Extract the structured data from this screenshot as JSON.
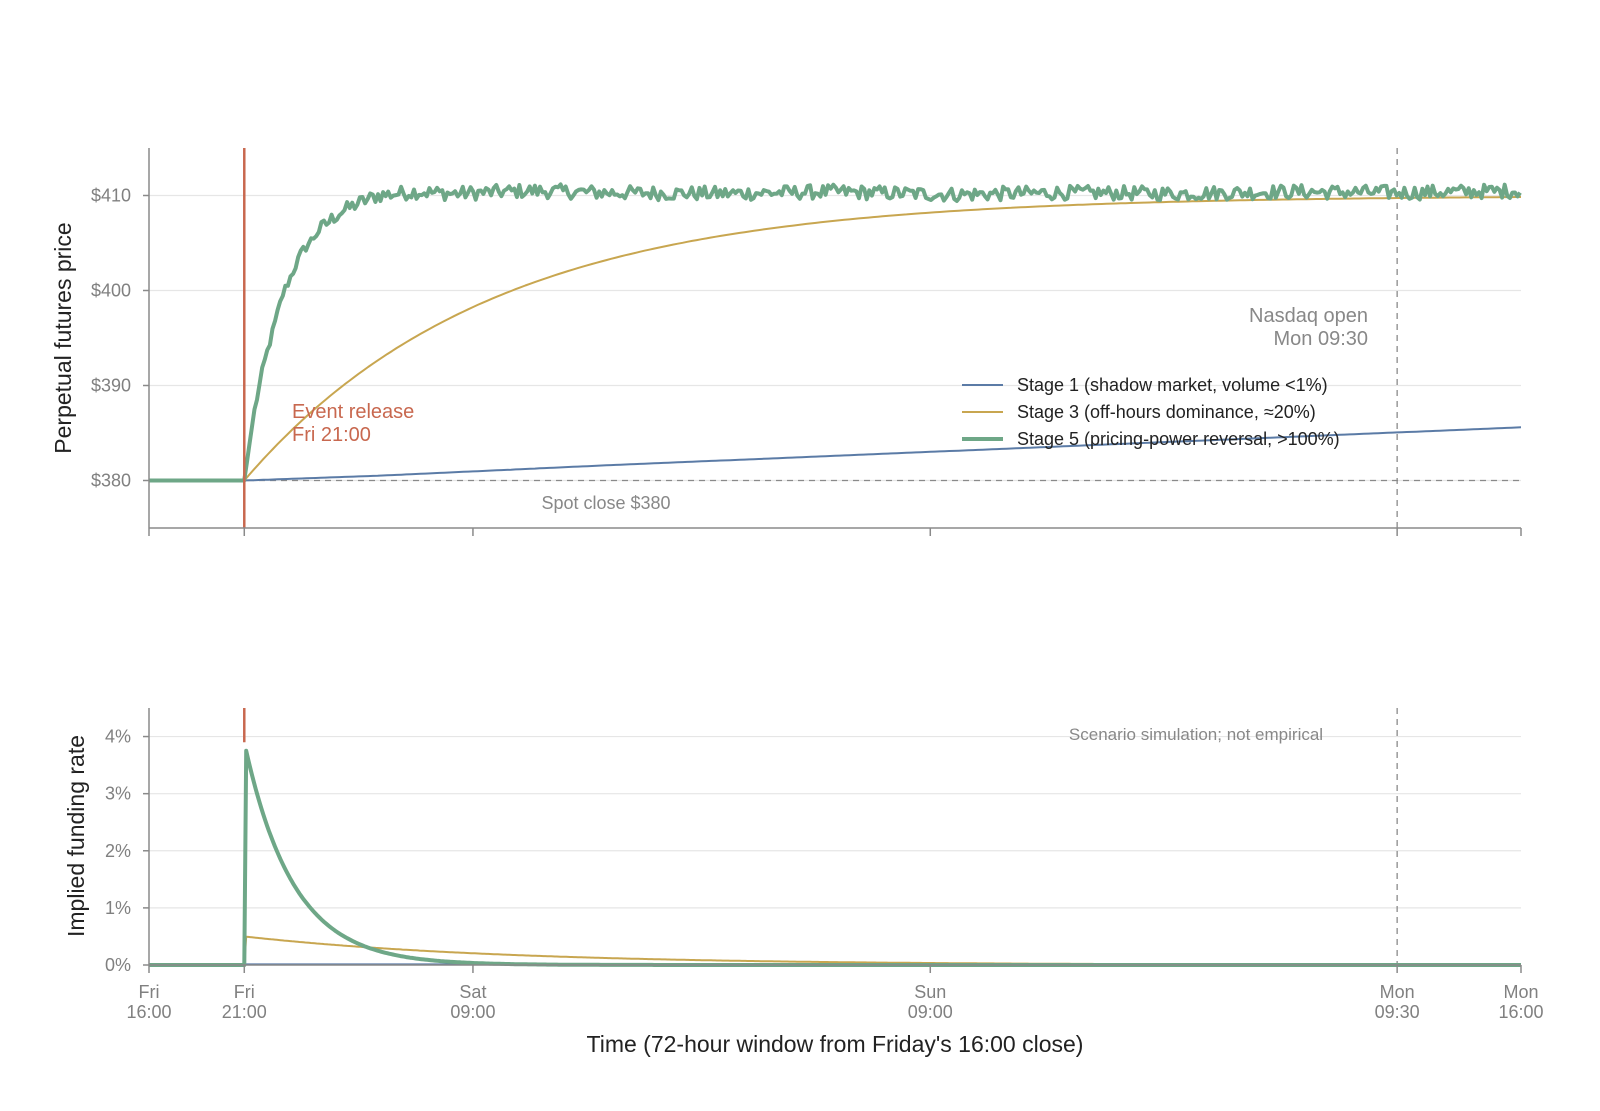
{
  "chart_data": [
    {
      "type": "line",
      "ylabel": "Perpetual futures price",
      "ylim": [
        375,
        415
      ],
      "xlim": [
        0,
        72
      ],
      "yticks": [
        380,
        390,
        400,
        410
      ],
      "ytick_labels": [
        "$380",
        "$390",
        "$400",
        "$410"
      ],
      "grid": "horizontal",
      "legend_placement": "center-right",
      "series": [
        {
          "name": "Stage 1 (shadow market, volume <1%)",
          "color": "#5b7ba6",
          "x": [
            0,
            5,
            12,
            24,
            36,
            48,
            60,
            72
          ],
          "y": [
            380,
            380,
            380.5,
            381.6,
            382.6,
            383.6,
            384.6,
            385.6
          ]
        },
        {
          "name": "Stage 3 (off-hours dominance, ≈20%)",
          "color": "#c8a650",
          "x": [
            0,
            5,
            6,
            7,
            8,
            10,
            12,
            15,
            18,
            21,
            24,
            30,
            36,
            42,
            48,
            54,
            60,
            66,
            72
          ],
          "y": [
            380,
            380,
            382.9,
            385.3,
            387.5,
            391.2,
            394.2,
            397.6,
            400.6,
            402.8,
            404.6,
            406.9,
            408.3,
            409.0,
            409.4,
            409.6,
            409.7,
            409.8,
            409.9
          ]
        },
        {
          "name": "Stage 5 (pricing-power reversal, >100%)",
          "color": "#6ea787",
          "x": [
            0,
            5,
            5.5,
            6,
            7,
            8,
            9,
            10,
            11,
            12,
            13,
            14,
            16,
            20,
            24,
            30,
            36,
            42,
            48,
            54,
            60,
            66,
            72
          ],
          "y": [
            380,
            380,
            387,
            392,
            399.5,
            404,
            406.5,
            408.2,
            409.2,
            410.0,
            410.2,
            410.4,
            410.2,
            410.5,
            410.3,
            410.2,
            410.4,
            410.1,
            410.3,
            410.2,
            410.4,
            410.3,
            410.5
          ]
        }
      ],
      "annotations": [
        {
          "text": "Event release",
          "text2": "Fri 21:00",
          "color": "#c8684f",
          "x": 5
        },
        {
          "text": "Nasdaq open",
          "text2": "Mon 09:30",
          "color": "#888888",
          "x": 65.5
        },
        {
          "text": "Spot close $380",
          "color": "#888888",
          "y": 380
        }
      ]
    },
    {
      "type": "line",
      "xlabel": "Time (72-hour window from Friday's 16:00 close)",
      "ylabel": "Implied funding rate",
      "ylim": [
        0,
        4.5
      ],
      "xlim": [
        0,
        72
      ],
      "yticks": [
        0,
        1,
        2,
        3,
        4
      ],
      "ytick_labels": [
        "0%",
        "1%",
        "2%",
        "3%",
        "4%"
      ],
      "xticks": [
        0,
        5,
        17,
        41,
        65.5,
        72
      ],
      "xtick_labels": [
        [
          "Fri",
          "16:00"
        ],
        [
          "Fri",
          "21:00"
        ],
        [
          "Sat",
          "09:00"
        ],
        [
          "Sun",
          "09:00"
        ],
        [
          "Mon",
          "09:30"
        ],
        [
          "Mon",
          "16:00"
        ]
      ],
      "grid": "horizontal",
      "series": [
        {
          "name": "Stage 1 (shadow market, volume <1%)",
          "color": "#5b7ba6",
          "x": [
            0,
            5,
            5.05,
            72
          ],
          "y": [
            0,
            0,
            0.02,
            0.01
          ]
        },
        {
          "name": "Stage 3 (off-hours dominance, ≈20%)",
          "color": "#c8a650",
          "x": [
            0,
            5,
            5.05,
            8,
            12,
            17,
            24,
            30,
            36,
            42,
            48,
            60,
            72
          ],
          "y": [
            0,
            0,
            0.5,
            0.44,
            0.34,
            0.24,
            0.16,
            0.11,
            0.08,
            0.05,
            0.04,
            0.02,
            0.01
          ]
        },
        {
          "name": "Stage 5 (pricing-power reversal, >100%)",
          "color": "#6ea787",
          "x": [
            0,
            5,
            5.05,
            6,
            7,
            8,
            9,
            10,
            11,
            12,
            14,
            16,
            20,
            24,
            72
          ],
          "y": [
            0,
            0,
            3.9,
            3.1,
            2.25,
            1.6,
            1.15,
            0.82,
            0.58,
            0.4,
            0.2,
            0.1,
            0.02,
            0.0,
            0.0
          ]
        }
      ],
      "annotations": [
        {
          "text": "Scenario simulation; not empirical",
          "color": "#888888"
        }
      ]
    }
  ]
}
